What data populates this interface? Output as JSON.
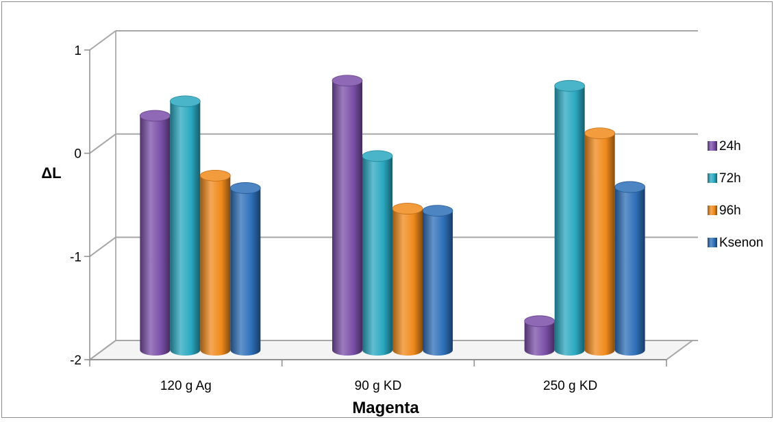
{
  "chart_data": {
    "type": "bar",
    "title": "",
    "xlabel": "Magenta",
    "ylabel": "ΔL",
    "ylim": [
      -2,
      1
    ],
    "yticks": [
      "1",
      "0",
      "-1",
      "-2"
    ],
    "categories": [
      "120 g Ag",
      "90 g KD",
      "250 g KD"
    ],
    "series": [
      {
        "name": "24h",
        "color": "#7b4fa8",
        "values": [
          0.27,
          0.61,
          -1.72
        ]
      },
      {
        "name": "72h",
        "color": "#2aa8c0",
        "values": [
          0.41,
          -0.12,
          0.56
        ]
      },
      {
        "name": "96h",
        "color": "#f08a1c",
        "values": [
          -0.31,
          -0.63,
          0.1
        ]
      },
      {
        "name": "Ksenon",
        "color": "#2e6fb8",
        "values": [
          -0.43,
          -0.65,
          -0.42
        ]
      }
    ],
    "grid": true,
    "legend_position": "right",
    "style": "3d-cylinder"
  }
}
